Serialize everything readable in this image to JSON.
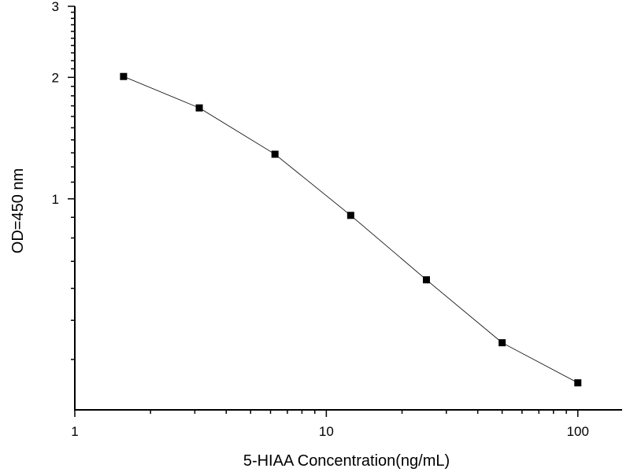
{
  "chart_data": {
    "type": "line",
    "title": "",
    "xlabel": "5-HIAA Concentration(ng/mL)",
    "ylabel": "OD=450 nm",
    "x_scale": "log",
    "y_scale": "log",
    "xlim": [
      1,
      150
    ],
    "ylim": [
      0.3,
      3
    ],
    "x_ticks": [
      1,
      10,
      100
    ],
    "x_tick_labels": [
      "1",
      "10",
      "100"
    ],
    "y_ticks": [
      1,
      2,
      3
    ],
    "y_tick_labels": [
      "1",
      "2",
      "3"
    ],
    "grid": false,
    "marker": "square",
    "color": "#000000",
    "series": [
      {
        "x": [
          1.5625,
          3.125,
          6.25,
          12.5,
          25,
          50,
          100
        ],
        "y": [
          2.01,
          1.68,
          1.29,
          0.91,
          0.63,
          0.44,
          0.35
        ]
      }
    ]
  }
}
